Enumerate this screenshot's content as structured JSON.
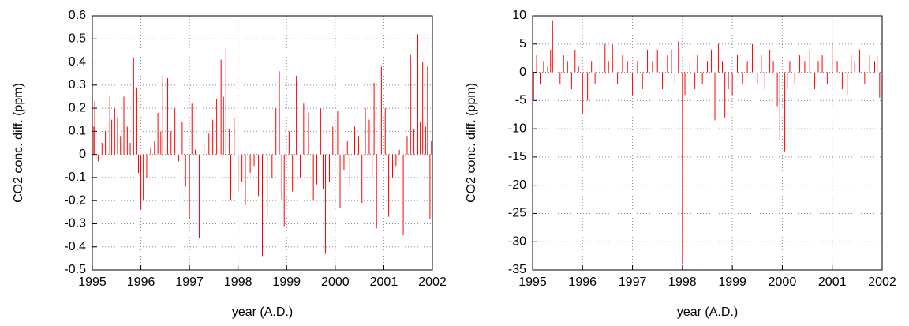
{
  "chart_data": [
    {
      "type": "impulse",
      "y_label": "CO2 conc. diff. (ppm)",
      "x_label": "year (A.D.)",
      "color": "#ff0000",
      "grid": true,
      "xlim": [
        1995,
        2002
      ],
      "xticks": [
        1995,
        1996,
        1997,
        1998,
        1999,
        2000,
        2001,
        2002
      ],
      "ylim": [
        -0.5,
        0.6
      ],
      "yticks": [
        -0.5,
        -0.4,
        -0.3,
        -0.2,
        -0.1,
        0,
        0.1,
        0.2,
        0.3,
        0.4,
        0.5,
        0.6
      ],
      "x": [
        1995.03,
        1995.05,
        1995.12,
        1995.2,
        1995.27,
        1995.3,
        1995.36,
        1995.4,
        1995.46,
        1995.52,
        1995.58,
        1995.65,
        1995.72,
        1995.78,
        1995.85,
        1995.9,
        1995.95,
        1996.0,
        1996.05,
        1996.12,
        1996.2,
        1996.28,
        1996.35,
        1996.41,
        1996.45,
        1996.55,
        1996.62,
        1996.7,
        1996.78,
        1996.85,
        1996.92,
        1997.0,
        1997.05,
        1997.12,
        1997.2,
        1997.3,
        1997.4,
        1997.48,
        1997.56,
        1997.65,
        1997.7,
        1997.75,
        1997.82,
        1997.85,
        1997.92,
        1998.0,
        1998.08,
        1998.15,
        1998.25,
        1998.33,
        1998.42,
        1998.5,
        1998.6,
        1998.7,
        1998.78,
        1998.85,
        1998.9,
        1998.95,
        1999.05,
        1999.12,
        1999.2,
        1999.28,
        1999.35,
        1999.45,
        1999.55,
        1999.62,
        1999.7,
        1999.75,
        1999.8,
        1999.88,
        1999.95,
        2000.05,
        2000.1,
        2000.18,
        2000.25,
        2000.3,
        2000.4,
        2000.48,
        2000.55,
        2000.62,
        2000.7,
        2000.76,
        2000.8,
        2000.85,
        2000.95,
        2001.03,
        2001.1,
        2001.18,
        2001.25,
        2001.32,
        2001.4,
        2001.48,
        2001.55,
        2001.62,
        2001.7,
        2001.75,
        2001.8,
        2001.86,
        2001.9,
        2001.95,
        2001.98
      ],
      "values": [
        0.12,
        0.23,
        -0.03,
        0.05,
        0.1,
        0.3,
        0.25,
        0.15,
        0.2,
        0.16,
        0.08,
        0.25,
        0.12,
        0.05,
        0.42,
        0.29,
        -0.08,
        -0.24,
        -0.2,
        -0.1,
        0.03,
        0.06,
        0.18,
        0.1,
        0.34,
        0.33,
        0.1,
        0.2,
        -0.03,
        0.14,
        -0.14,
        -0.28,
        0.22,
        0.02,
        -0.36,
        0.05,
        0.09,
        0.15,
        0.24,
        0.41,
        0.25,
        0.46,
        0.11,
        -0.2,
        0.16,
        -0.16,
        -0.12,
        -0.22,
        -0.08,
        -0.05,
        -0.18,
        -0.44,
        -0.28,
        -0.1,
        0.2,
        0.36,
        -0.2,
        -0.31,
        0.1,
        -0.16,
        0.34,
        -0.1,
        0.22,
        0.18,
        -0.2,
        -0.13,
        0.2,
        -0.15,
        -0.43,
        -0.12,
        0.12,
        0.19,
        -0.23,
        -0.07,
        0.06,
        -0.14,
        0.12,
        0.08,
        -0.21,
        0.2,
        0.15,
        -0.1,
        0.31,
        -0.32,
        0.38,
        0.2,
        -0.27,
        -0.1,
        -0.05,
        0.02,
        -0.35,
        0.08,
        0.43,
        0.11,
        0.52,
        0.14,
        0.4,
        0.12,
        0.38,
        -0.28,
        0.06
      ]
    },
    {
      "type": "impulse",
      "y_label": "CO2 conc. diff. (ppm)",
      "x_label": "year (A.D.)",
      "color": "#ff0000",
      "grid": true,
      "xlim": [
        1995,
        2002
      ],
      "xticks": [
        1995,
        1996,
        1997,
        1998,
        1999,
        2000,
        2001,
        2002
      ],
      "ylim": [
        -35,
        10
      ],
      "yticks": [
        -35,
        -30,
        -25,
        -20,
        -15,
        -10,
        -5,
        0,
        5,
        10
      ],
      "x": [
        1995.02,
        1995.08,
        1995.15,
        1995.22,
        1995.3,
        1995.36,
        1995.4,
        1995.45,
        1995.55,
        1995.62,
        1995.7,
        1995.78,
        1995.85,
        1995.92,
        1996.0,
        1996.05,
        1996.1,
        1996.18,
        1996.25,
        1996.35,
        1996.45,
        1996.52,
        1996.6,
        1996.7,
        1996.8,
        1996.9,
        1997.0,
        1997.1,
        1997.2,
        1997.3,
        1997.4,
        1997.5,
        1997.6,
        1997.7,
        1997.78,
        1997.85,
        1997.92,
        1998.0,
        1998.05,
        1998.15,
        1998.25,
        1998.3,
        1998.4,
        1998.5,
        1998.58,
        1998.65,
        1998.72,
        1998.8,
        1998.85,
        1998.92,
        1999.0,
        1999.1,
        1999.2,
        1999.3,
        1999.4,
        1999.5,
        1999.58,
        1999.65,
        1999.75,
        1999.82,
        1999.9,
        1999.95,
        2000.05,
        2000.1,
        2000.15,
        2000.25,
        2000.35,
        2000.45,
        2000.55,
        2000.65,
        2000.72,
        2000.8,
        2000.9,
        2001.0,
        2001.1,
        2001.2,
        2001.3,
        2001.38,
        2001.45,
        2001.55,
        2001.65,
        2001.75,
        2001.85,
        2001.9,
        2001.95
      ],
      "values": [
        -5,
        3,
        -2,
        2,
        1,
        4,
        9.2,
        4,
        -2,
        3,
        2,
        -3,
        4,
        1,
        -7.5,
        -3,
        -5,
        2,
        -2,
        3,
        5,
        2,
        5,
        -2,
        3,
        2,
        -4,
        2,
        -3,
        4,
        2,
        4,
        -3,
        3,
        4,
        -2,
        5.5,
        -34,
        -4,
        2,
        -3,
        3,
        -2,
        2,
        4,
        -8.5,
        5,
        2,
        -8,
        -3,
        -4,
        3,
        -2,
        2,
        5,
        -2,
        3,
        -3,
        4,
        2,
        -6,
        -12,
        -14,
        -3,
        2,
        -2,
        3,
        2,
        4,
        -3,
        2,
        3,
        -2,
        5,
        2,
        -3,
        -4,
        3,
        2,
        4,
        -2,
        3,
        2,
        3,
        -4.5
      ]
    }
  ]
}
